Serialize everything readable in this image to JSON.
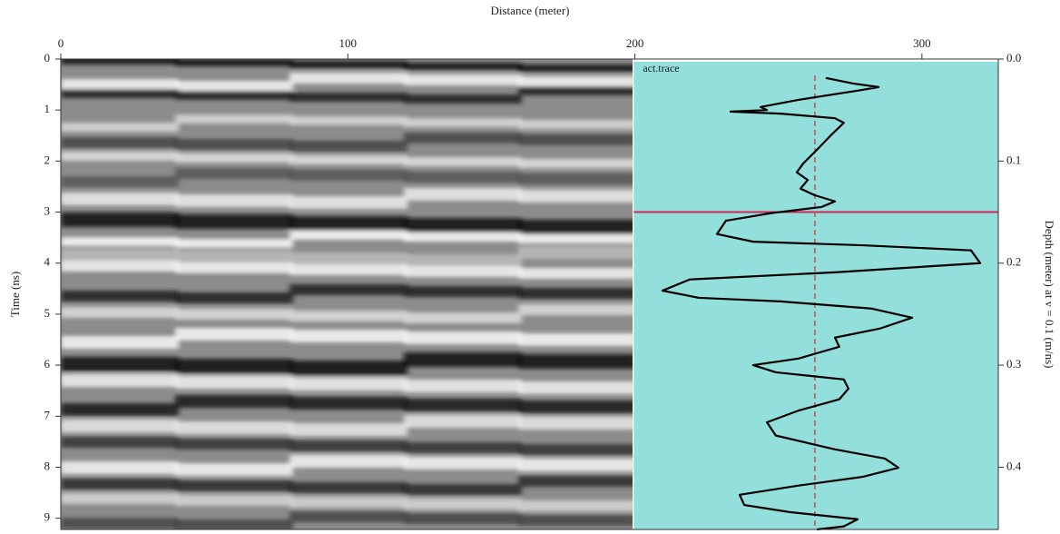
{
  "chart_data": {
    "type": "radargram",
    "title": "Distance (meter)",
    "ylabel": "Time (ns)",
    "y2label": "Depth (meter) at v = 0.1 (m/ns)",
    "trace_label": "act.trace",
    "xlim": [
      0,
      326.6
    ],
    "xticks": [
      0,
      100,
      200,
      300
    ],
    "ylim": [
      0,
      9.22
    ],
    "yticks": [
      0,
      1,
      2,
      3,
      4,
      5,
      6,
      7,
      8,
      9
    ],
    "y2lim": [
      0,
      0.461
    ],
    "y2ticks": [
      {
        "value": 0,
        "label": "0.0"
      },
      0.1,
      0.2,
      0.3,
      0.4
    ],
    "panel_xlim": [
      199.6,
      326.6
    ],
    "hline": 3,
    "hline_color": "#d0245a",
    "vline": 262.7,
    "vline_color": "#c0504d",
    "panel_color": "#93dfdb",
    "series": [
      {
        "name": "act.trace",
        "color": "#000000",
        "x": [
          266.5,
          276,
          284.9,
          277.6,
          257,
          243.8,
          246,
          233.3,
          250.7,
          269.7,
          272.8,
          268,
          263.4,
          258.6,
          256.4,
          260.2,
          257.7,
          262.7,
          269.7,
          265,
          247.5,
          231.7,
          228.6,
          241.2,
          279.2,
          317.1,
          320.3,
          269.7,
          219.1,
          209.6,
          222.3,
          250.7,
          282.3,
          296.6,
          285.5,
          269.7,
          271.2,
          257,
          241.2,
          249.1,
          272.8,
          274.4,
          271.2,
          257,
          246,
          249.1,
          269.7,
          287.1,
          291.8,
          279.2,
          257,
          236.5,
          238.1,
          253.9,
          277.6,
          272.8,
          263.4
        ],
        "values": [
          0.37,
          0.48,
          0.55,
          0.62,
          0.8,
          0.94,
          1.0,
          1.03,
          1.07,
          1.16,
          1.25,
          1.51,
          1.78,
          2.05,
          2.22,
          2.37,
          2.54,
          2.67,
          2.79,
          2.9,
          3.02,
          3.17,
          3.43,
          3.58,
          3.65,
          3.75,
          4.0,
          4.18,
          4.32,
          4.54,
          4.68,
          4.75,
          4.89,
          5.07,
          5.28,
          5.46,
          5.64,
          5.87,
          6.0,
          6.14,
          6.28,
          6.46,
          6.67,
          6.89,
          7.12,
          7.38,
          7.65,
          7.83,
          8.01,
          8.19,
          8.36,
          8.54,
          8.74,
          8.88,
          9.02,
          9.16,
          9.22
        ]
      }
    ]
  }
}
